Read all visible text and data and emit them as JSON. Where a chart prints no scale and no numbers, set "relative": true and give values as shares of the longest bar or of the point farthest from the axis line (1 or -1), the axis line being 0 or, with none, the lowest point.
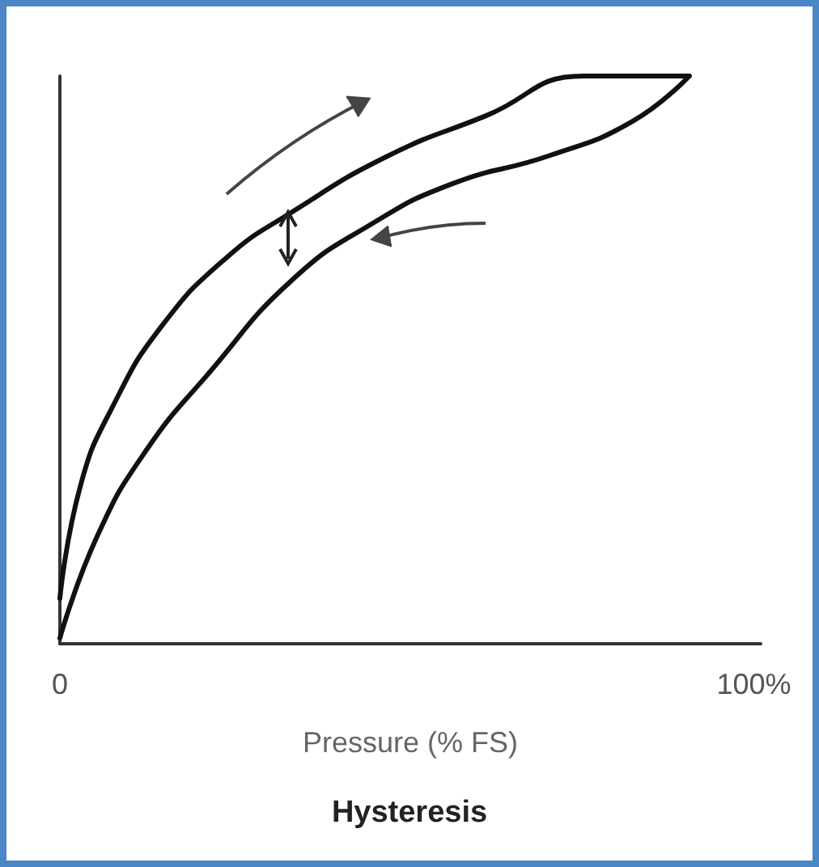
{
  "chart_data": {
    "type": "line",
    "relative": true,
    "title": "Hysteresis",
    "xlabel": "Pressure (% FS)",
    "xlim": [
      0,
      101
    ],
    "xticks": [
      0,
      {
        "value": 100,
        "label": "100%"
      }
    ],
    "series": [
      {
        "color": "#111111",
        "x": [
          0,
          3,
          7.7,
          14.7,
          24,
          33.4,
          47.4,
          61.4,
          75.5,
          90.7
        ],
        "values": [
          0.08,
          0.28,
          0.42,
          0.56,
          0.68,
          0.76,
          0.86,
          0.93,
          1.0,
          1.0
        ]
      },
      {
        "color": "#111111",
        "x": [
          0,
          5.4,
          12.4,
          21.7,
          33.4,
          45,
          56.5,
          70.6,
          82.5,
          90.7
        ],
        "values": [
          0.01,
          0.19,
          0.34,
          0.48,
          0.64,
          0.74,
          0.81,
          0.86,
          0.92,
          1.0
        ]
      }
    ],
    "grid": false,
    "marker": "none",
    "line_style": "solid"
  }
}
